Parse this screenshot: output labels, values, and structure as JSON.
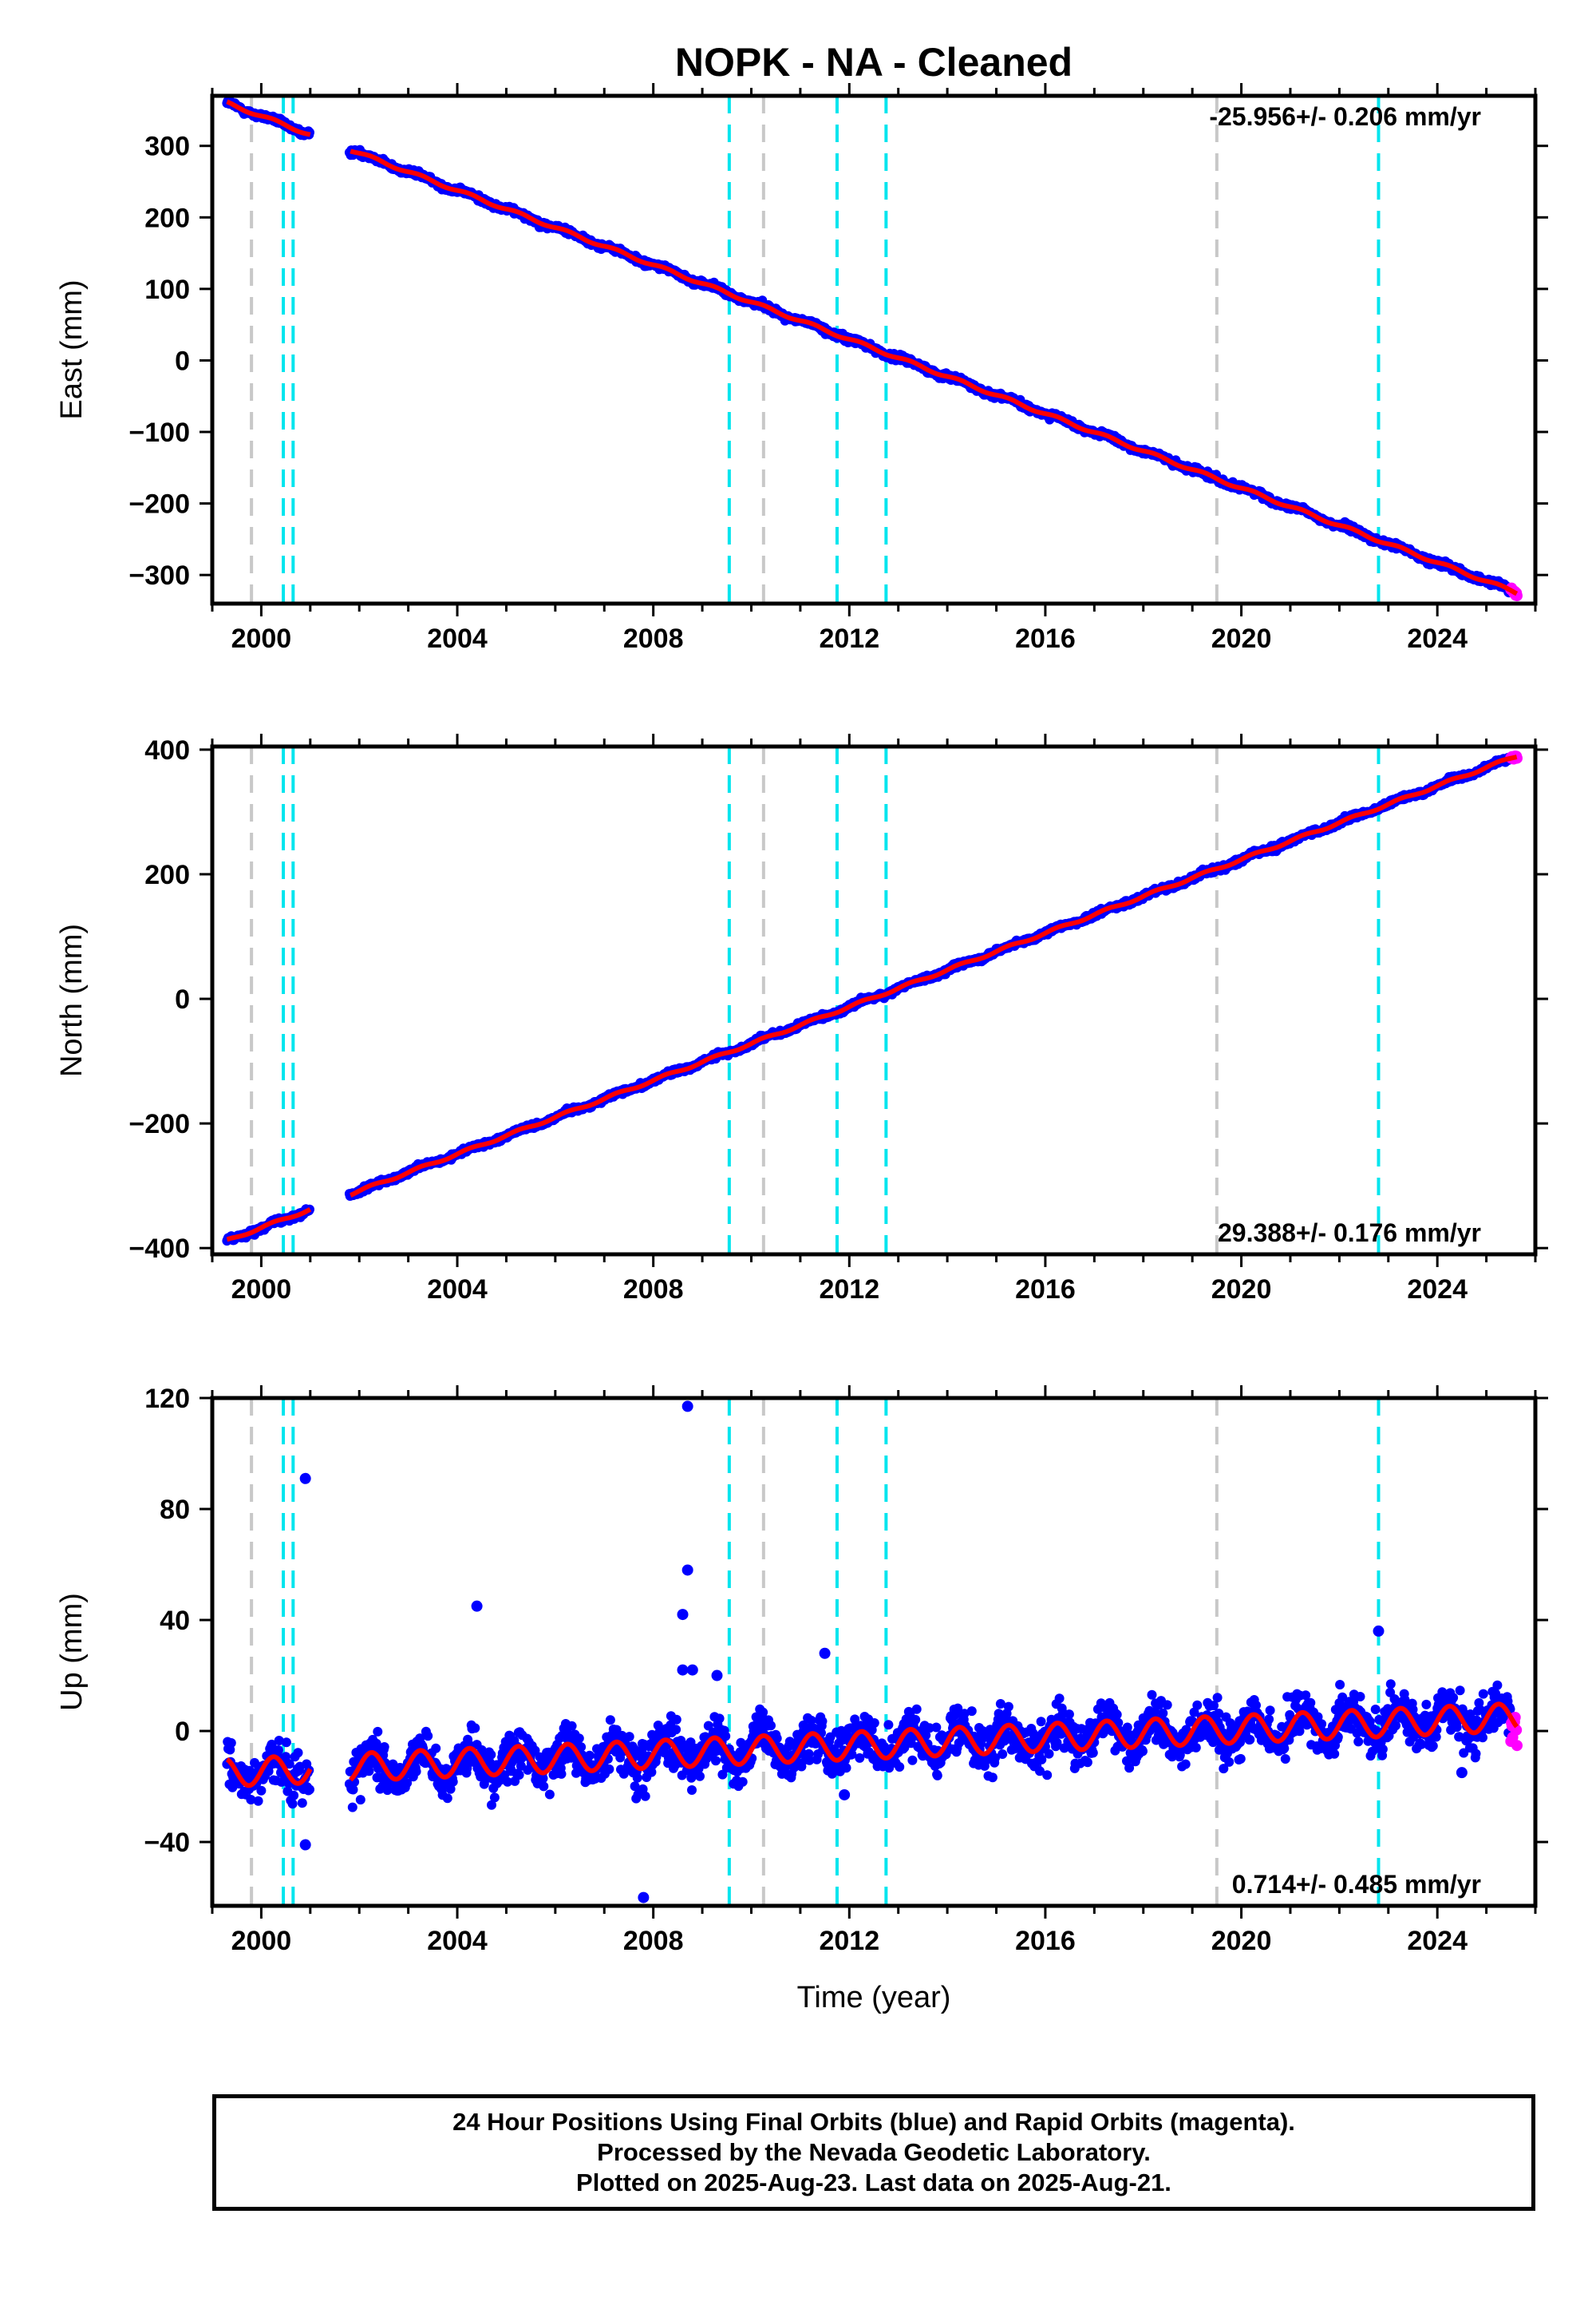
{
  "title": "NOPK  - NA - Cleaned",
  "colors": {
    "final_orbits": "#0000ff",
    "rapid_orbits": "#ff00ff",
    "model": "#ff0000",
    "cyan_events": "#00e5ee",
    "gray_events": "#c8c8c8"
  },
  "footer": {
    "line1": "24 Hour Positions Using Final Orbits (blue) and Rapid Orbits (magenta).",
    "line2": "Processed by the Nevada Geodetic Laboratory.",
    "line3": "Plotted on 2025-Aug-23. Last data on 2025-Aug-21."
  },
  "chart_data": [
    {
      "type": "scatter",
      "panel": "east",
      "ylabel": "East (mm)",
      "xlabel": "",
      "xlim": [
        1999.0,
        2026.0
      ],
      "ylim": [
        -340,
        370
      ],
      "xticks": [
        2000,
        2004,
        2008,
        2012,
        2016,
        2020,
        2024
      ],
      "yticks": [
        300,
        200,
        100,
        0,
        -100,
        -200,
        -300
      ],
      "ytick_labels": [
        "300",
        "200",
        "100",
        "0",
        "−100",
        "−200",
        "−300"
      ],
      "rate_label": "-25.956+/- 0.206 mm/yr",
      "rate_position": "top-right",
      "start": [
        1999.3,
        360
      ],
      "end": [
        2025.63,
        -325
      ],
      "slope": -25.956,
      "seasonal_amp": 2,
      "noise": 3,
      "gap": [
        2001.0,
        2001.8
      ],
      "outliers": []
    },
    {
      "type": "scatter",
      "panel": "north",
      "ylabel": "North (mm)",
      "xlabel": "",
      "xlim": [
        1999.0,
        2026.0
      ],
      "ylim": [
        -410,
        405
      ],
      "xticks": [
        2000,
        2004,
        2008,
        2012,
        2016,
        2020,
        2024
      ],
      "yticks": [
        400,
        200,
        0,
        -200,
        -400
      ],
      "ytick_labels": [
        "400",
        "200",
        "0",
        "−200",
        "−400"
      ],
      "rate_label": "29.388+/- 0.176 mm/yr",
      "rate_position": "bottom-right",
      "start": [
        1999.3,
        -388
      ],
      "end": [
        2025.63,
        390
      ],
      "slope": 29.388,
      "seasonal_amp": 2,
      "noise": 3,
      "gap": [
        2001.0,
        2001.8
      ],
      "outliers": []
    },
    {
      "type": "scatter",
      "panel": "up",
      "ylabel": "Up (mm)",
      "xlabel": "Time (year)",
      "xlim": [
        1999.0,
        2026.0
      ],
      "ylim": [
        -63,
        120
      ],
      "xticks": [
        2000,
        2004,
        2008,
        2012,
        2016,
        2020,
        2024
      ],
      "yticks": [
        120,
        80,
        40,
        0,
        -40
      ],
      "ytick_labels": [
        "120",
        "80",
        "40",
        "0",
        "−40"
      ],
      "rate_label": "0.714+/- 0.485 mm/yr",
      "rate_position": "bottom-right",
      "start": [
        1999.3,
        -15
      ],
      "end": [
        2025.63,
        5
      ],
      "slope": 0.714,
      "seasonal_amp": 5,
      "noise": 6,
      "gap": [
        2001.0,
        2001.8
      ],
      "outliers": [
        [
          2000.9,
          91
        ],
        [
          2004.4,
          45
        ],
        [
          2008.7,
          117
        ],
        [
          2008.7,
          58
        ],
        [
          2008.6,
          42
        ],
        [
          2008.6,
          22
        ],
        [
          2008.8,
          22
        ],
        [
          2011.5,
          28
        ],
        [
          2011.9,
          -23
        ],
        [
          2007.8,
          -60
        ],
        [
          2000.9,
          -41
        ],
        [
          2009.3,
          20
        ],
        [
          2022.8,
          36
        ],
        [
          2024.5,
          -15
        ]
      ]
    }
  ],
  "event_lines": {
    "gray": [
      1999.8,
      2010.25,
      2019.5
    ],
    "cyan": [
      2000.45,
      2000.65,
      2009.55,
      2011.75,
      2012.75,
      2022.8
    ]
  }
}
